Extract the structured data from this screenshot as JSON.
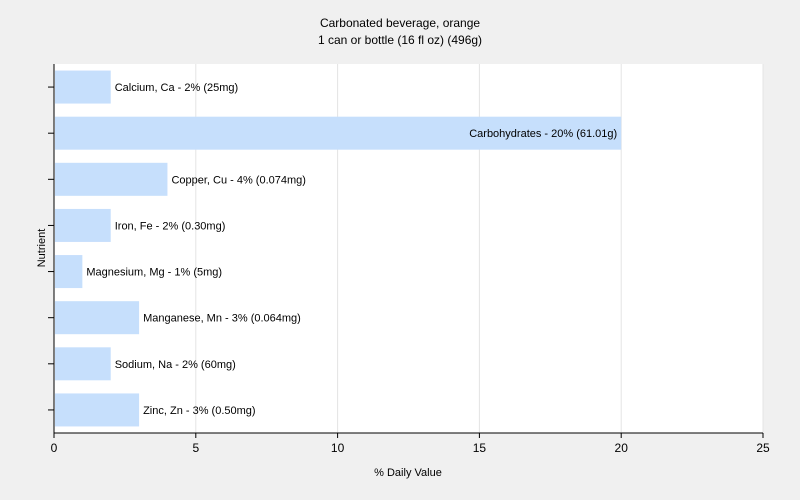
{
  "chart_data": {
    "type": "bar",
    "orientation": "horizontal",
    "title": "Carbonated beverage, orange",
    "subtitle": "1 can or bottle (16 fl oz) (496g)",
    "xlabel": "% Daily Value",
    "ylabel": "Nutrient",
    "xlim": [
      0,
      25
    ],
    "xticks": [
      0,
      5,
      10,
      15,
      20,
      25
    ],
    "grid": "vertical",
    "bar_color": "#c6dffc",
    "categories": [
      "Calcium, Ca",
      "Carbohydrates",
      "Copper, Cu",
      "Iron, Fe",
      "Magnesium, Mg",
      "Manganese, Mn",
      "Sodium, Na",
      "Zinc, Zn"
    ],
    "values": [
      2,
      20,
      4,
      2,
      1,
      3,
      2,
      3
    ],
    "labels": [
      "Calcium, Ca - 2% (25mg)",
      "Carbohydrates - 20% (61.01g)",
      "Copper, Cu - 4% (0.074mg)",
      "Iron, Fe - 2% (0.30mg)",
      "Magnesium, Mg - 1% (5mg)",
      "Manganese, Mn - 3% (0.064mg)",
      "Sodium, Na - 2% (60mg)",
      "Zinc, Zn - 3% (0.50mg)"
    ]
  }
}
